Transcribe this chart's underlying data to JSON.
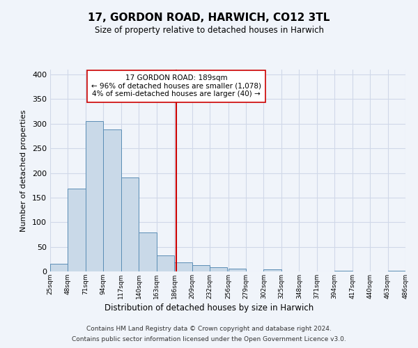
{
  "title": "17, GORDON ROAD, HARWICH, CO12 3TL",
  "subtitle": "Size of property relative to detached houses in Harwich",
  "xlabel": "Distribution of detached houses by size in Harwich",
  "ylabel": "Number of detached properties",
  "footnote1": "Contains HM Land Registry data © Crown copyright and database right 2024.",
  "footnote2": "Contains public sector information licensed under the Open Government Licence v3.0.",
  "annotation_title": "17 GORDON ROAD: 189sqm",
  "annotation_line1": "← 96% of detached houses are smaller (1,078)",
  "annotation_line2": "4% of semi-detached houses are larger (40) →",
  "property_size": 189,
  "bin_edges": [
    25,
    48,
    71,
    94,
    117,
    140,
    163,
    186,
    209,
    232,
    256,
    279,
    302,
    325,
    348,
    371,
    394,
    417,
    440,
    463,
    486
  ],
  "bar_heights": [
    16,
    168,
    305,
    288,
    191,
    79,
    33,
    19,
    13,
    8,
    5,
    0,
    4,
    0,
    0,
    0,
    2,
    0,
    0,
    2
  ],
  "bar_color": "#c9d9e8",
  "bar_edge_color": "#5a8db5",
  "vline_color": "#cc0000",
  "grid_color": "#d0d8e8",
  "bg_color": "#f0f4fa",
  "ylim": [
    0,
    410
  ],
  "yticks": [
    0,
    50,
    100,
    150,
    200,
    250,
    300,
    350,
    400
  ]
}
